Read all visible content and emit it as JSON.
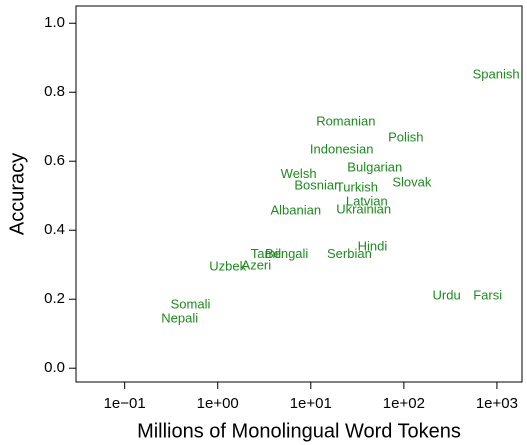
{
  "chart_data": {
    "type": "scatter",
    "x_label": "Millions of Monolingual Word Tokens",
    "y_label": "Accuracy",
    "labels": [
      "Spanish",
      "Romanian",
      "Polish",
      "Indonesian",
      "Bulgarian",
      "Welsh",
      "Slovak",
      "Bosnian",
      "Turkish",
      "Latvian",
      "Ukrainian",
      "Albanian",
      "Hindi",
      "Tamil",
      "Bengali",
      "Serbian",
      "Uzbek",
      "Azeri",
      "Urdu",
      "Farsi",
      "Somali",
      "Nepali"
    ],
    "x": [
      980,
      23.8,
      105,
      21.5,
      48.7,
      7.4,
      122,
      11.9,
      31.3,
      40,
      37,
      6.9,
      46,
      3.3,
      5.5,
      26,
      1.28,
      2.6,
      288,
      795,
      0.51,
      0.39
    ],
    "values": [
      0.85,
      0.713,
      0.667,
      0.632,
      0.58,
      0.562,
      0.536,
      0.528,
      0.522,
      0.481,
      0.458,
      0.455,
      0.351,
      0.33,
      0.33,
      0.33,
      0.293,
      0.296,
      0.209,
      0.209,
      0.183,
      0.142
    ],
    "color": "#1e8a1e",
    "xlog": true,
    "xlim": [
      0.03,
      1860
    ],
    "ylim": [
      -0.04,
      1.05
    ],
    "xticks": [
      {
        "value": 0.1,
        "label": "1e−01"
      },
      {
        "value": 1,
        "label": "1e+00"
      },
      {
        "value": 10,
        "label": "1e+01"
      },
      {
        "value": 100,
        "label": "1e+02"
      },
      {
        "value": 1000,
        "label": "1e+03"
      }
    ],
    "yticks": [
      {
        "value": 0,
        "label": "0.0"
      },
      0.2,
      0.4,
      0.6,
      0.8,
      {
        "value": 1,
        "label": "1.0"
      }
    ]
  }
}
